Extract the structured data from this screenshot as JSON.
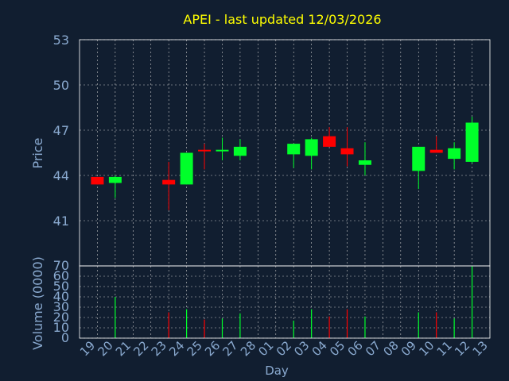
{
  "chart_data": {
    "type": "candlestick",
    "title": "APEI - last updated 12/03/2026",
    "xlabel": "Day",
    "price_axis": {
      "label": "Price",
      "ylim": [
        38,
        53
      ],
      "ticks": [
        41,
        44,
        47,
        50,
        53
      ]
    },
    "volume_axis": {
      "label": "Volume (0000)",
      "ylim": [
        0,
        70
      ],
      "ticks": [
        0,
        10,
        20,
        30,
        40,
        50,
        60,
        70
      ]
    },
    "x_tick_labels": [
      "19",
      "20",
      "21",
      "22",
      "23",
      "24",
      "25",
      "26",
      "27",
      "28",
      "01",
      "02",
      "03",
      "04",
      "05",
      "06",
      "07",
      "08",
      "09",
      "10",
      "11",
      "12",
      "13"
    ],
    "grid": true,
    "colors": {
      "background": "#111e30",
      "title": "#ffff00",
      "axis_text": "#8aaad0",
      "up": "#00ff2a",
      "down": "#ff0000",
      "grid": "#c8c8c8",
      "frame": "#ffffff"
    },
    "candles": [
      {
        "x": "19",
        "open": 43.9,
        "close": 43.4,
        "high": 43.9,
        "low": 43.4
      },
      {
        "x": "20",
        "open": 43.5,
        "close": 43.9,
        "high": 44.0,
        "low": 42.5
      },
      {
        "x": "23",
        "open": 43.7,
        "close": 43.4,
        "high": 44.9,
        "low": 41.7
      },
      {
        "x": "24",
        "open": 43.4,
        "close": 45.5,
        "high": 45.5,
        "low": 43.4
      },
      {
        "x": "25",
        "open": 45.7,
        "close": 45.6,
        "high": 46.1,
        "low": 44.4
      },
      {
        "x": "26",
        "open": 45.6,
        "close": 45.7,
        "high": 46.5,
        "low": 45.0
      },
      {
        "x": "27",
        "open": 45.3,
        "close": 45.9,
        "high": 46.4,
        "low": 45.0
      },
      {
        "x": "02",
        "open": 45.4,
        "close": 46.1,
        "high": 46.1,
        "low": 44.5
      },
      {
        "x": "03",
        "open": 45.3,
        "close": 46.4,
        "high": 46.5,
        "low": 44.4
      },
      {
        "x": "04",
        "open": 46.6,
        "close": 45.9,
        "high": 47.2,
        "low": 45.9
      },
      {
        "x": "05",
        "open": 45.8,
        "close": 45.4,
        "high": 47.2,
        "low": 44.6
      },
      {
        "x": "06",
        "open": 44.7,
        "close": 45.0,
        "high": 46.2,
        "low": 44.0
      },
      {
        "x": "09",
        "open": 44.3,
        "close": 45.9,
        "high": 45.9,
        "low": 43.1
      },
      {
        "x": "10",
        "open": 45.7,
        "close": 45.5,
        "high": 46.6,
        "low": 45.5
      },
      {
        "x": "11",
        "open": 45.1,
        "close": 45.8,
        "high": 46.2,
        "low": 44.4
      },
      {
        "x": "12",
        "open": 44.9,
        "close": 47.5,
        "high": 47.9,
        "low": 44.8
      }
    ],
    "volume": [
      {
        "x": "19",
        "value": 0,
        "dir": "down"
      },
      {
        "x": "20",
        "value": 40,
        "dir": "up"
      },
      {
        "x": "23",
        "value": 25,
        "dir": "down"
      },
      {
        "x": "24",
        "value": 28,
        "dir": "up"
      },
      {
        "x": "25",
        "value": 18,
        "dir": "down"
      },
      {
        "x": "26",
        "value": 19,
        "dir": "up"
      },
      {
        "x": "27",
        "value": 24,
        "dir": "up"
      },
      {
        "x": "02",
        "value": 17,
        "dir": "up"
      },
      {
        "x": "03",
        "value": 28,
        "dir": "up"
      },
      {
        "x": "04",
        "value": 21,
        "dir": "down"
      },
      {
        "x": "05",
        "value": 28,
        "dir": "down"
      },
      {
        "x": "06",
        "value": 21,
        "dir": "up"
      },
      {
        "x": "09",
        "value": 25,
        "dir": "up"
      },
      {
        "x": "10",
        "value": 25,
        "dir": "down"
      },
      {
        "x": "11",
        "value": 19,
        "dir": "up"
      },
      {
        "x": "12",
        "value": 70,
        "dir": "up"
      }
    ]
  }
}
